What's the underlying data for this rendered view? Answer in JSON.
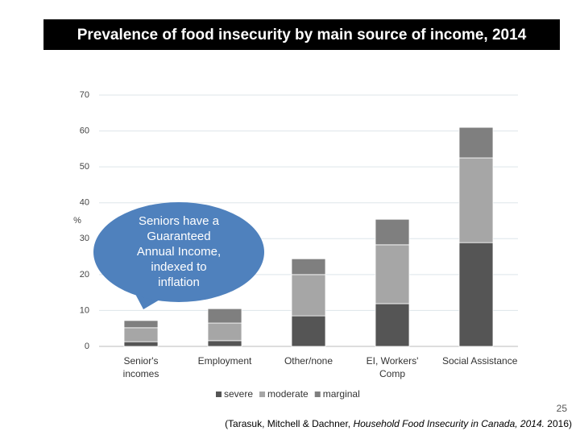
{
  "chart_data": {
    "type": "stacked_bar",
    "title": "Prevalence of food insecurity by main source of income, 2014",
    "y_label": "%",
    "categories": [
      "Senior's incomes",
      "Employment",
      "Other/none",
      "EI, Workers' Comp",
      "Social Assistance"
    ],
    "series": [
      {
        "name": "severe",
        "color": "#555555",
        "values": [
          1.3,
          1.6,
          8.5,
          11.9,
          28.9
        ]
      },
      {
        "name": "moderate",
        "color": "#a6a6a6",
        "values": [
          3.9,
          4.9,
          11.5,
          16.4,
          23.6
        ]
      },
      {
        "name": "marginal",
        "color": "#7f7f7f",
        "values": [
          2.0,
          4.0,
          4.4,
          7.1,
          8.5
        ]
      }
    ],
    "ylim": [
      0,
      70
    ],
    "yticks": [
      0,
      10,
      20,
      30,
      40,
      50,
      60,
      70
    ],
    "grid": true,
    "callout": [
      "Seniors have a",
      "Guaranteed",
      "Annual Income,",
      "indexed to",
      "inflation"
    ],
    "page_number": "25",
    "citation": [
      "(Tarasuk, Mitchell & Dachner, ",
      "Household Food Insecurity in Canada, 2014.",
      " 2016)"
    ]
  }
}
